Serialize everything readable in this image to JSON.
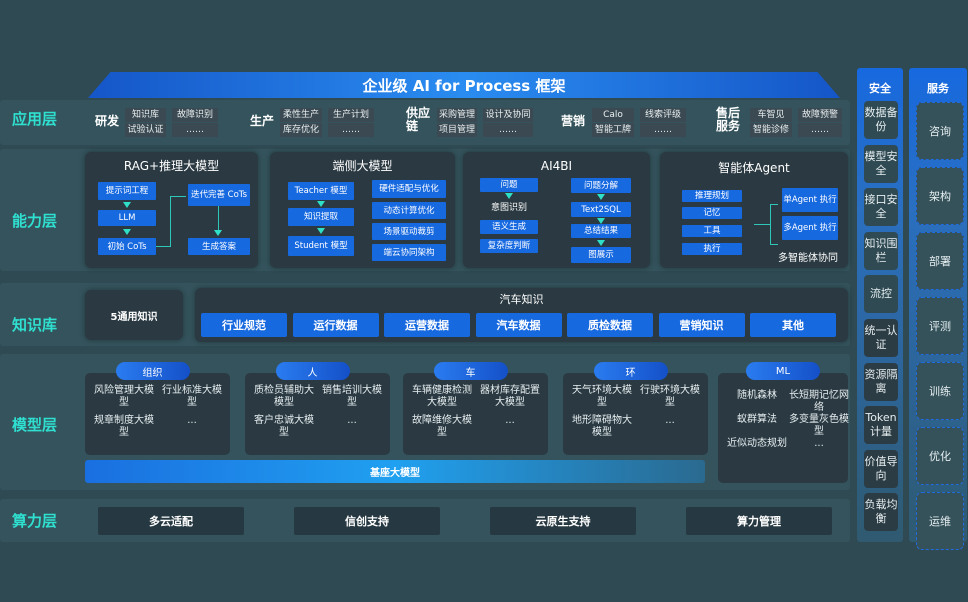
{
  "title": "企业级 AI for Process 框架",
  "layers": {
    "app": "应用层",
    "capability": "能力层",
    "knowledge": "知识库",
    "model": "模型层",
    "compute": "算力层"
  },
  "app_groups": [
    {
      "name": "研发",
      "items": [
        "知识库",
        "试验认证",
        "故障识别",
        "……"
      ]
    },
    {
      "name": "生产",
      "items": [
        "柔性生产",
        "库存优化",
        "生产计划",
        "……"
      ]
    },
    {
      "name": "供应链",
      "items": [
        "采购管理",
        "项目管理",
        "设计及协同",
        "……"
      ]
    },
    {
      "name": "营销",
      "items": [
        "Calo",
        "智能工牌",
        "线索评级",
        "……"
      ]
    },
    {
      "name": "售后服务",
      "items": [
        "车智见",
        "智能诊修",
        "故障预警",
        "……"
      ]
    }
  ],
  "capability": {
    "rag": {
      "title": "RAG+推理大模型",
      "boxes": [
        "提示词工程",
        "LLM",
        "初始 CoTs",
        "迭代完善 CoTs",
        "生成答案"
      ]
    },
    "edge": {
      "title": "端侧大模型",
      "boxes": [
        "Teacher 模型",
        "知识提取",
        "Student 模型",
        "硬件适配与优化",
        "动态计算优化",
        "场景驱动裁剪",
        "端云协同架构"
      ]
    },
    "ai4bi": {
      "title": "AI4BI",
      "boxes": [
        "问题",
        "意图识别",
        "语义生成",
        "复杂度判断",
        "问题分解",
        "Text2SQL",
        "总结结果",
        "图展示"
      ]
    },
    "agent": {
      "title": "智能体Agent",
      "boxes": [
        "推理规划",
        "记忆",
        "工具",
        "执行",
        "单Agent 执行",
        "多Agent 执行"
      ],
      "caption": "多智能体协同"
    }
  },
  "knowledge": {
    "general": "5通用知识",
    "auto_title": "汽车知识",
    "items": [
      "行业规范",
      "运行数据",
      "运营数据",
      "汽车数据",
      "质检数据",
      "营销知识",
      "其他"
    ]
  },
  "models": [
    {
      "name": "组织",
      "items": [
        "风险管理大模型",
        "行业标准大模型",
        "规章制度大模型",
        "..."
      ]
    },
    {
      "name": "人",
      "items": [
        "质检员辅助大模型",
        "销售培训大模型",
        "客户忠诚大模型",
        "..."
      ]
    },
    {
      "name": "车",
      "items": [
        "车辆健康检测大模型",
        "器材库存配置大模型",
        "故障维修大模型",
        "..."
      ]
    },
    {
      "name": "环",
      "items": [
        "天气环境大模型",
        "行驶环境大模型",
        "地形障碍物大模型",
        "..."
      ]
    },
    {
      "name": "ML",
      "items": [
        "随机森林",
        "长短期记忆网络",
        "蚁群算法",
        "多变量灰色模型",
        "近似动态规划",
        "..."
      ]
    }
  ],
  "base_model": "基座大模型",
  "compute": [
    "多云适配",
    "信创支持",
    "云原生支持",
    "算力管理"
  ],
  "security": {
    "title": "安全",
    "items": [
      "数据备份",
      "模型安全",
      "接口安全",
      "知识围栏",
      "流控",
      "统一认证",
      "资源隔离",
      "Token计量",
      "价值导向",
      "负载均衡"
    ]
  },
  "service": {
    "title": "服务",
    "items": [
      "咨询",
      "架构",
      "部署",
      "评测",
      "训练",
      "优化",
      "运维"
    ]
  }
}
